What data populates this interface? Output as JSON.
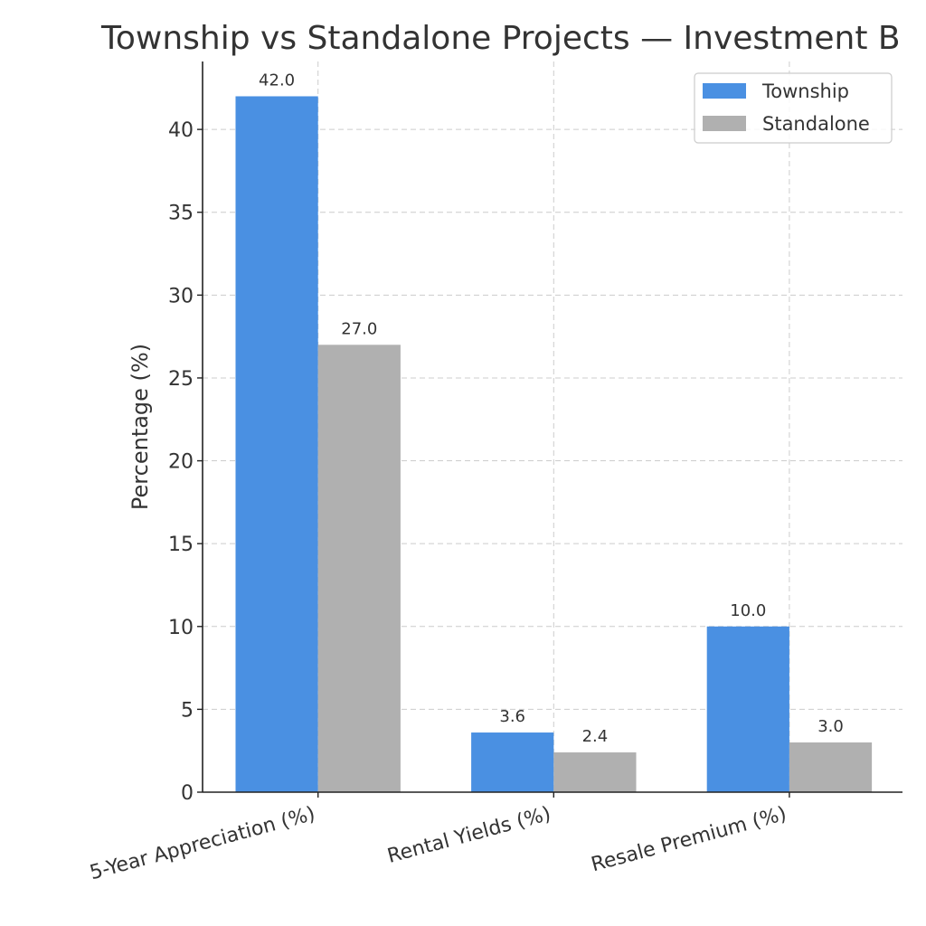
{
  "chart_data": {
    "type": "bar",
    "title": "Township vs Standalone Projects — Investment B",
    "xlabel": "",
    "ylabel": "Percentage (%)",
    "categories": [
      "5-Year Appreciation (%)",
      "Rental Yields (%)",
      "Resale Premium (%)"
    ],
    "series": [
      {
        "name": "Township",
        "values": [
          42.0,
          3.6,
          10.0
        ],
        "color": "#4a90e2"
      },
      {
        "name": "Standalone",
        "values": [
          27.0,
          2.4,
          3.0
        ],
        "color": "#b0b0b0"
      }
    ],
    "ylim": [
      0,
      44.1
    ],
    "yticks": [
      0,
      5,
      10,
      15,
      20,
      25,
      30,
      35,
      40
    ],
    "grid": true,
    "legend_position": "top-right",
    "data_labels": true
  }
}
